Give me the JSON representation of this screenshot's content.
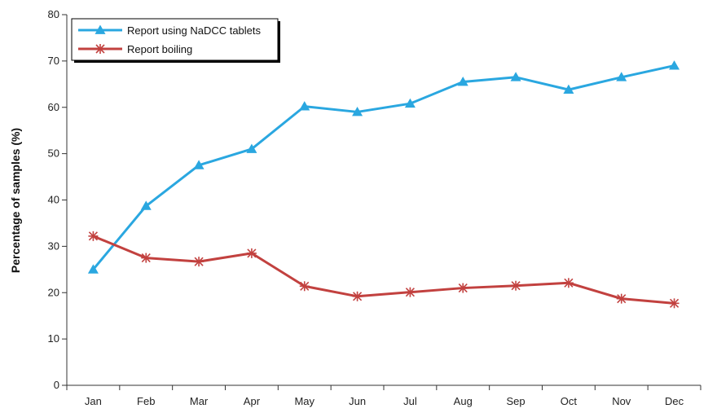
{
  "chart_data": {
    "type": "line",
    "title": "",
    "xlabel": "",
    "ylabel": "Percentage of samples (%)",
    "categories": [
      "Jan",
      "Feb",
      "Mar",
      "Apr",
      "May",
      "Jun",
      "Jul",
      "Aug",
      "Sep",
      "Oct",
      "Nov",
      "Dec"
    ],
    "ylim": [
      0,
      80
    ],
    "yticks": [
      0,
      10,
      20,
      30,
      40,
      50,
      60,
      70,
      80
    ],
    "grid": false,
    "legend_position": "top-left",
    "series": [
      {
        "name": "Report using NaDCC tablets",
        "color": "#2aa7e0",
        "marker": "triangle",
        "values": [
          25,
          38.7,
          47.5,
          51,
          60.2,
          59,
          60.8,
          65.5,
          66.5,
          63.8,
          66.5,
          69
        ]
      },
      {
        "name": "Report boiling",
        "color": "#c2413f",
        "marker": "asterisk",
        "values": [
          32.2,
          27.5,
          26.7,
          28.5,
          21.4,
          19.2,
          20.1,
          21,
          21.5,
          22.1,
          18.7,
          17.7
        ]
      }
    ]
  }
}
